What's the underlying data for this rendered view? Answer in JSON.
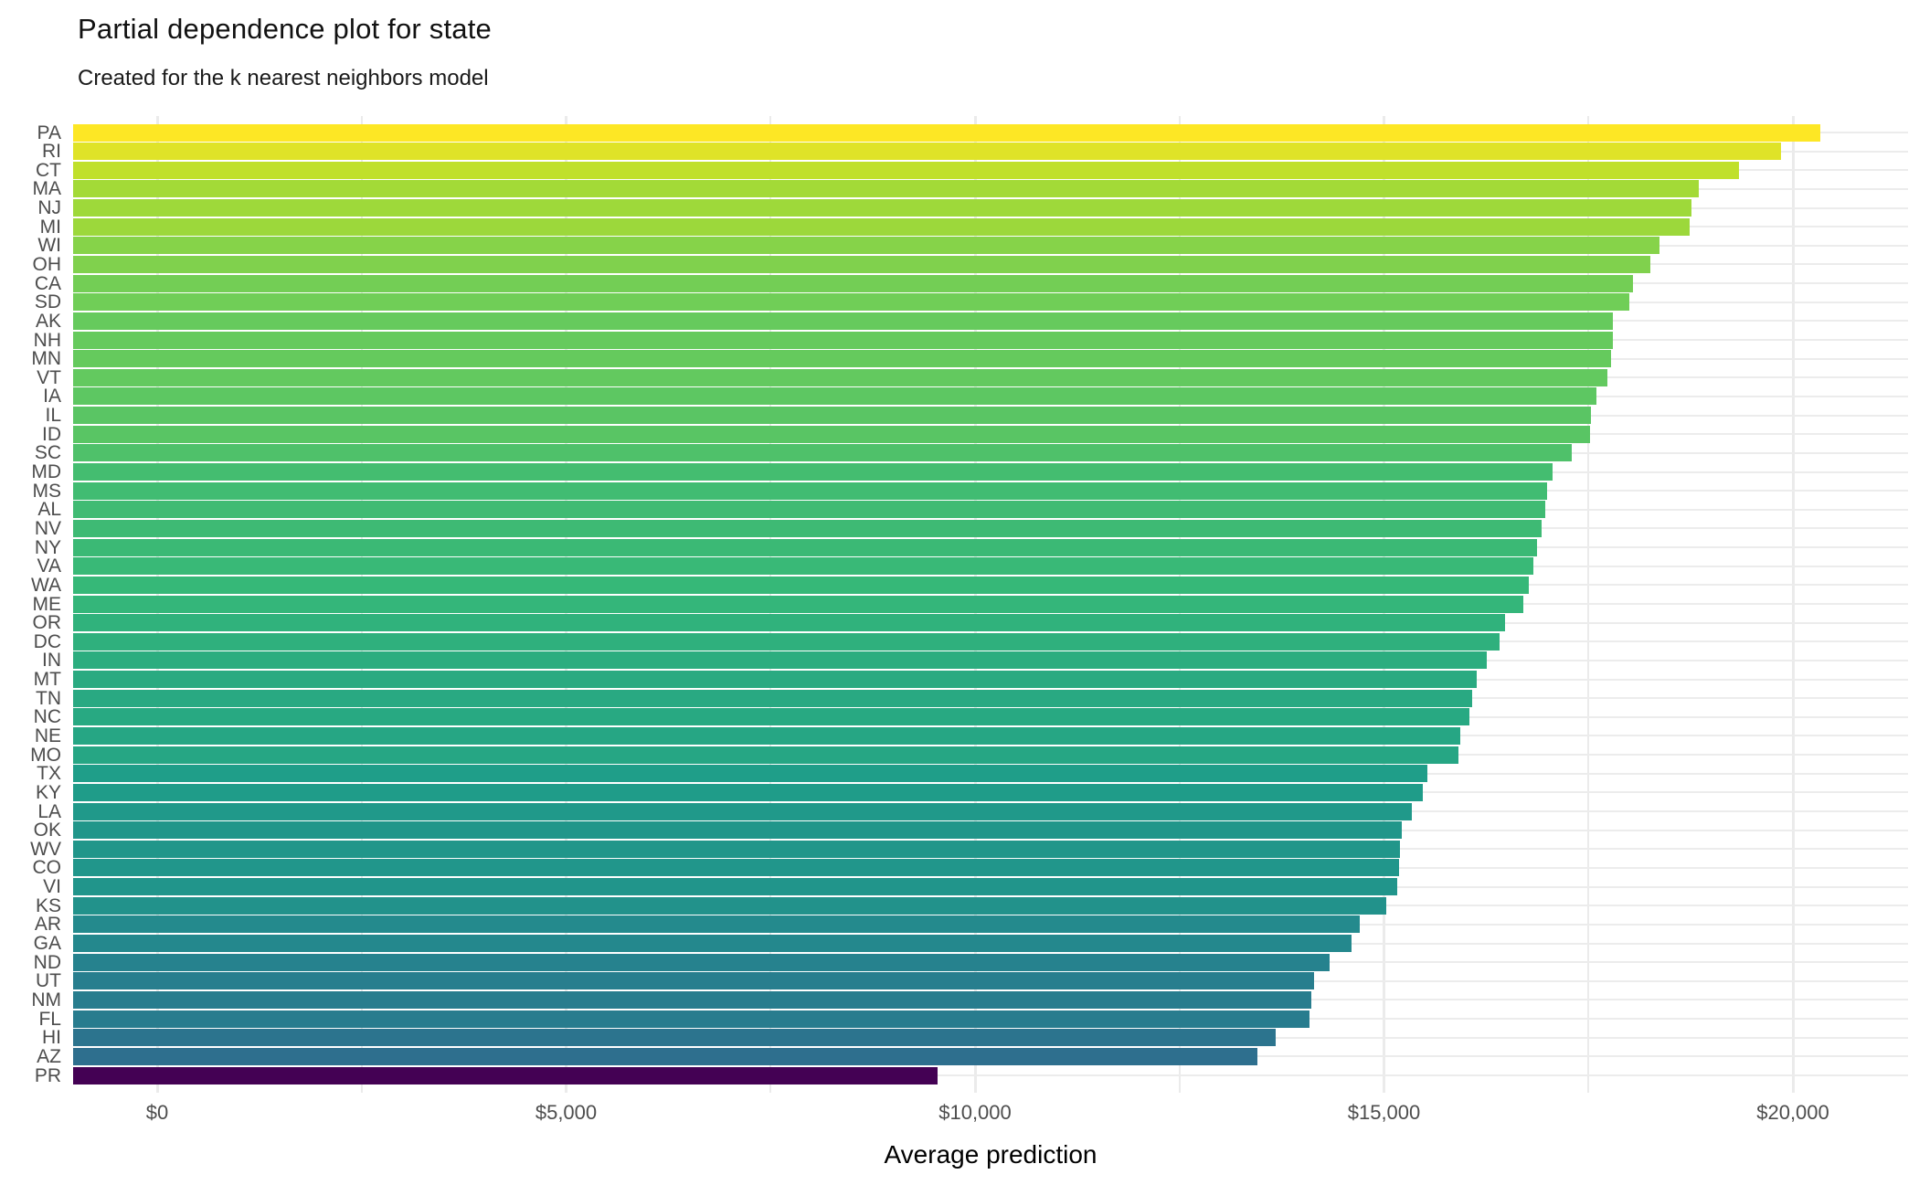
{
  "title": "Partial dependence plot for state",
  "subtitle": "Created for the k nearest neighbors model",
  "chart_data": {
    "type": "bar",
    "orientation": "horizontal",
    "title": "Partial dependence plot for state",
    "subtitle": "Created for the k nearest neighbors model",
    "xlabel": "Average prediction",
    "ylabel": "",
    "categories": [
      "PA",
      "RI",
      "CT",
      "MA",
      "NJ",
      "MI",
      "WI",
      "OH",
      "CA",
      "SD",
      "AK",
      "NH",
      "MN",
      "VT",
      "IA",
      "IL",
      "ID",
      "SC",
      "MD",
      "MS",
      "AL",
      "NV",
      "NY",
      "VA",
      "WA",
      "ME",
      "OR",
      "DC",
      "IN",
      "MT",
      "TN",
      "NC",
      "NE",
      "MO",
      "TX",
      "KY",
      "LA",
      "OK",
      "WV",
      "CO",
      "VI",
      "KS",
      "AR",
      "GA",
      "ND",
      "UT",
      "NM",
      "FL",
      "HI",
      "AZ",
      "PR"
    ],
    "values": [
      20340,
      19855,
      19340,
      18850,
      18760,
      18735,
      18370,
      18255,
      18040,
      17995,
      17800,
      17795,
      17775,
      17730,
      17595,
      17530,
      17520,
      17295,
      17065,
      16995,
      16970,
      16925,
      16875,
      16825,
      16770,
      16700,
      16480,
      16415,
      16255,
      16130,
      16080,
      16050,
      15930,
      15910,
      15530,
      15470,
      15345,
      15215,
      15190,
      15180,
      15160,
      15030,
      14700,
      14605,
      14330,
      14145,
      14110,
      14085,
      13675,
      13455,
      9540
    ],
    "x_ticks": {
      "values": [
        0,
        5000,
        10000,
        15000,
        20000
      ],
      "labels": [
        "$0",
        "$5,000",
        "$10,000",
        "$15,000",
        "$20,000"
      ]
    },
    "x_minor_ticks": [
      2500,
      7500,
      12500,
      17500
    ],
    "xlim": [
      0,
      21400
    ],
    "grid": true,
    "legend": "none",
    "bar_color_mapping": "value mapped to viridis color scale (min=dark purple, max=yellow)",
    "palette_viridis": [
      "#440154",
      "#482878",
      "#3E4A89",
      "#31688E",
      "#26828E",
      "#1F9E89",
      "#35B779",
      "#6DCD59",
      "#B4DE2C",
      "#FDE725"
    ],
    "colors": {
      "gridline": "#EBEBEB",
      "axis_text": "#4D4D4D",
      "title_text": "#111111"
    }
  }
}
